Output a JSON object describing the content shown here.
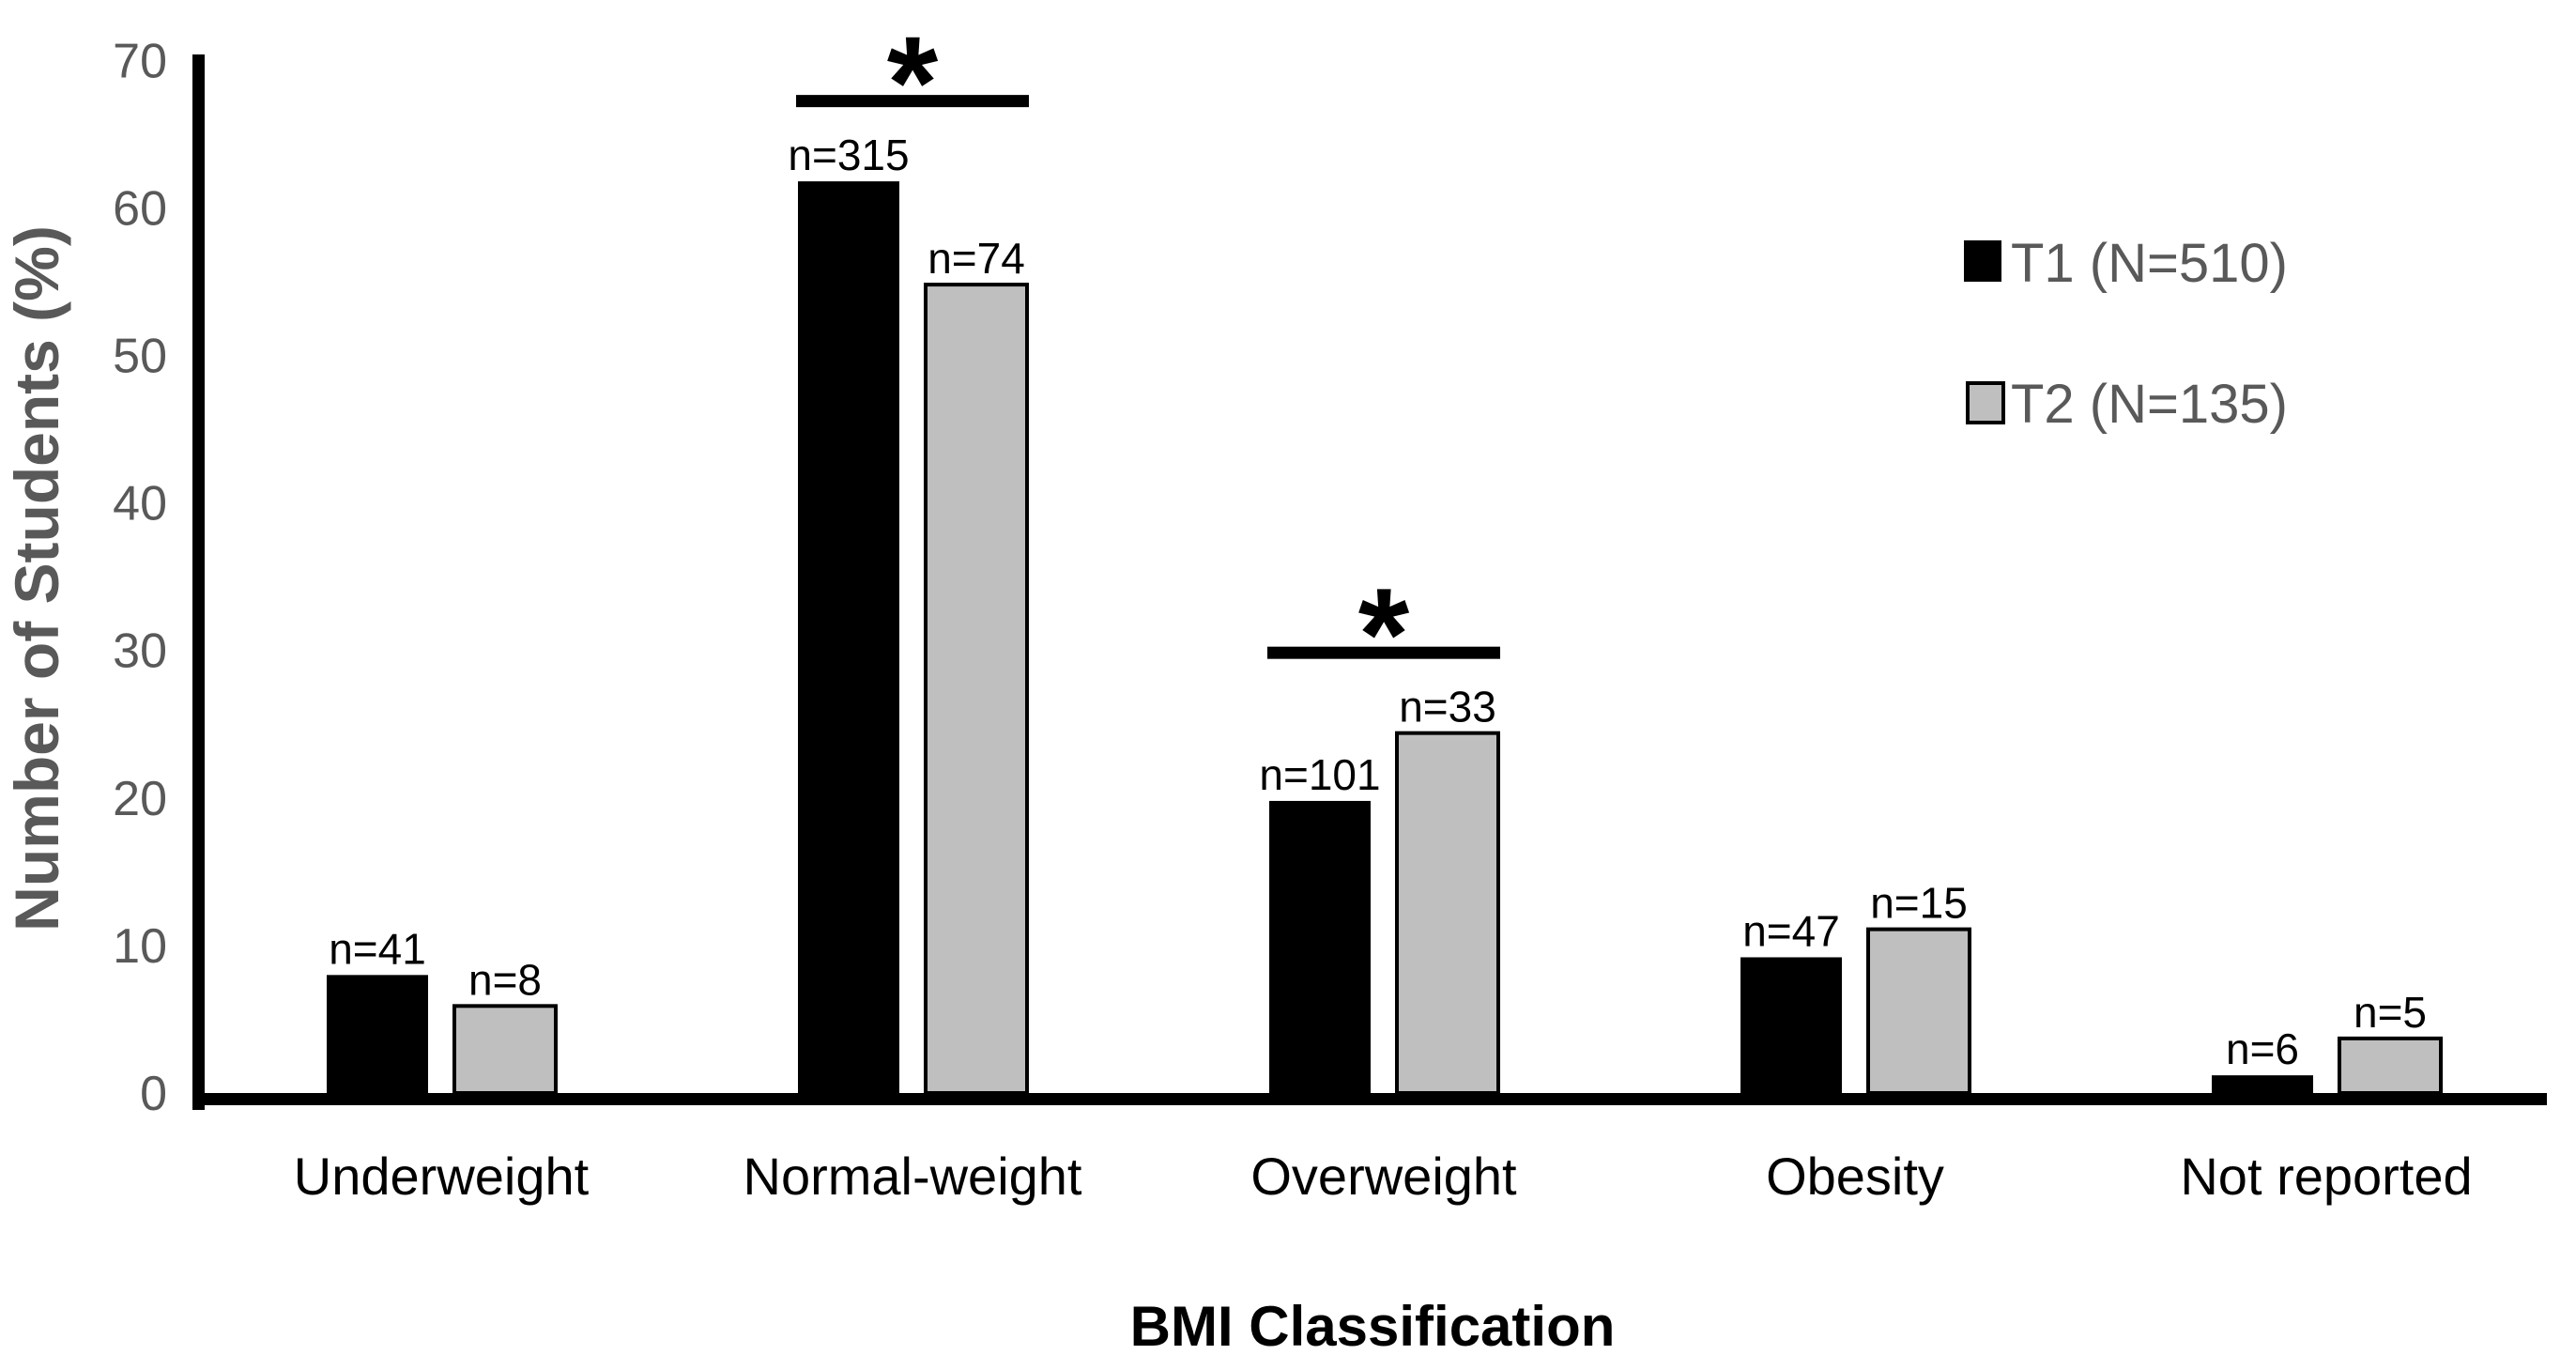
{
  "figure": {
    "background": "#ffffff",
    "axis_text_color": "#595959",
    "data_text_color": "#000000",
    "axis_line_color": "#000000"
  },
  "chart_data": {
    "type": "bar",
    "title": "",
    "xlabel": "BMI Classification",
    "ylabel": "Number of Students (%)",
    "ylim": [
      0,
      70
    ],
    "yticks": [
      0,
      10,
      20,
      30,
      40,
      50,
      60,
      70
    ],
    "grid": false,
    "legend_position": "upper right",
    "categories": [
      "Underweight",
      "Normal-weight",
      "Overweight",
      "Obesity",
      "Not reported"
    ],
    "series": [
      {
        "name": "T1 (N=510)",
        "color": "#000000",
        "border_color": "#000000",
        "values": [
          8.0,
          61.8,
          19.8,
          9.2,
          1.2
        ],
        "labels": [
          "n=41",
          "n=315",
          "n=101",
          "n=47",
          "n=6"
        ]
      },
      {
        "name": "T2 (N=135)",
        "color": "#bfbfbf",
        "border_color": "#000000",
        "values": [
          5.9,
          54.8,
          24.4,
          11.1,
          3.7
        ],
        "labels": [
          "n=8",
          "n=74",
          "n=33",
          "n=15",
          "n=5"
        ]
      }
    ],
    "significance": [
      {
        "category_index": 1,
        "category": "Normal-weight",
        "marker": "*"
      },
      {
        "category_index": 2,
        "category": "Overweight",
        "marker": "*"
      }
    ]
  }
}
